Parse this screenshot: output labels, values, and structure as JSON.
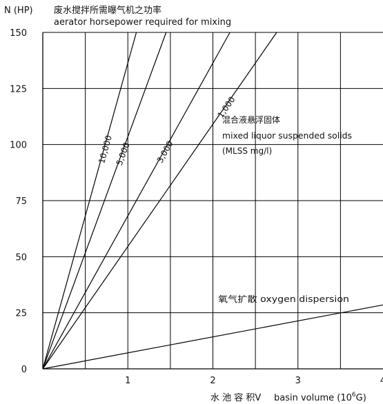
{
  "chart_data": {
    "type": "line",
    "ylabel_prefix": "N (HP)",
    "ylabel_cn": "废水搅拌所需曝气机之功率",
    "ylabel_en": "aerator horsepower required for mixing",
    "xlabel_cn": "水 池 容 积V",
    "xlabel_en_main": "basin volume (10",
    "xlabel_en_exp": "6",
    "xlabel_en_tail": "G)",
    "xlim": [
      0,
      4
    ],
    "ylim": [
      0,
      150
    ],
    "x_ticks": [
      1,
      2,
      3,
      4
    ],
    "x_tick_labels": [
      "1",
      "2",
      "3",
      "4"
    ],
    "y_ticks": [
      0,
      25,
      50,
      75,
      100,
      125,
      150
    ],
    "y_tick_labels": [
      "0",
      "25",
      "50",
      "75",
      "100",
      "125",
      "150"
    ],
    "x_gridlines": [
      0.5,
      1,
      1.5,
      2,
      2.5,
      3,
      3.5
    ],
    "grid": true,
    "series": [
      {
        "name": "10,000",
        "x": [
          0,
          1.1
        ],
        "y": [
          0,
          150
        ]
      },
      {
        "name": "5,000",
        "x": [
          0,
          1.45
        ],
        "y": [
          0,
          150
        ]
      },
      {
        "name": "3,000",
        "x": [
          0,
          2.2
        ],
        "y": [
          0,
          150
        ]
      },
      {
        "name": "1,000",
        "x": [
          0,
          2.75
        ],
        "y": [
          0,
          150
        ]
      },
      {
        "name": "氧气扩散 oxygen dispersion",
        "x": [
          0,
          4
        ],
        "y": [
          0,
          28.5
        ]
      }
    ],
    "mlss_cn": "混合液悬浮固体",
    "mlss_en": "mixed liquor suspended solids",
    "mlss_unit": "(MLSS mg/l)",
    "oxygen_label": "氧气扩散 oxygen dispersion"
  }
}
